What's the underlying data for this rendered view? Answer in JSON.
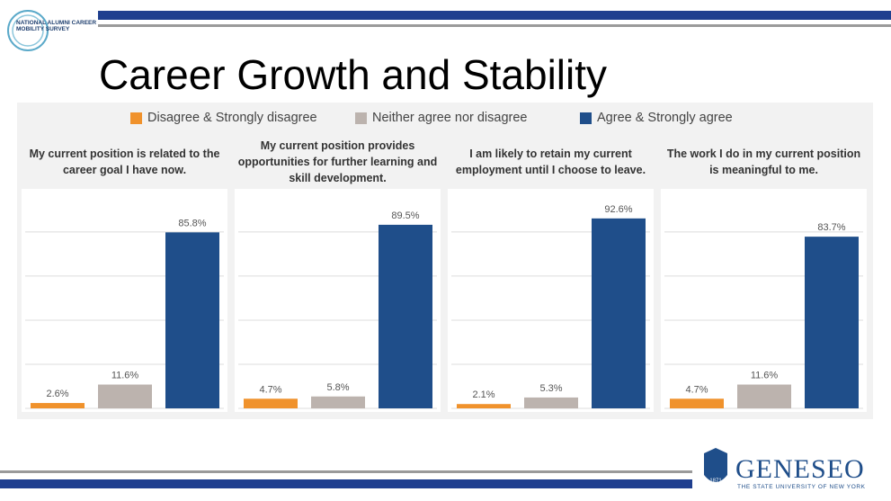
{
  "header": {
    "title": "Career Growth and Stability",
    "logo_text": "NATIONAL ALUMNI CAREER MOBILITY SURVEY"
  },
  "footer": {
    "logo_name": "GENESEO",
    "logo_subtitle": "THE STATE UNIVERSITY OF NEW YORK",
    "logo_year": "1871"
  },
  "legend": [
    {
      "name": "Disagree & Strongly disagree",
      "color": "#f0922c"
    },
    {
      "name": "Neither agree nor disagree",
      "color": "#bcb3ae"
    },
    {
      "name": "Agree & Strongly agree",
      "color": "#1f4e8a"
    }
  ],
  "chart_data": [
    {
      "type": "bar",
      "title": "My current position is related to the career goal I have now.",
      "values": [
        2.6,
        11.6,
        85.8
      ],
      "value_labels": [
        "2.6%",
        "11.6%",
        "85.8%"
      ],
      "ylim": [
        0,
        107
      ],
      "yticks": [
        0,
        21.5,
        43,
        64.5,
        86
      ],
      "grid": true
    },
    {
      "type": "bar",
      "title": "My current position provides opportunities for further learning and skill development.",
      "values": [
        4.7,
        5.8,
        89.5
      ],
      "value_labels": [
        "4.7%",
        "5.8%",
        "89.5%"
      ],
      "ylim": [
        0,
        107
      ],
      "yticks": [
        0,
        21.5,
        43,
        64.5,
        86
      ],
      "grid": true
    },
    {
      "type": "bar",
      "title": "I am likely to retain my current employment until I choose to leave.",
      "values": [
        2.1,
        5.3,
        92.6
      ],
      "value_labels": [
        "2.1%",
        "5.3%",
        "92.6%"
      ],
      "ylim": [
        0,
        107
      ],
      "yticks": [
        0,
        21.5,
        43,
        64.5,
        86
      ],
      "grid": true
    },
    {
      "type": "bar",
      "title": "The work I do in my current position is meaningful to me.",
      "values": [
        4.7,
        11.6,
        83.7
      ],
      "value_labels": [
        "4.7%",
        "11.6%",
        "83.7%"
      ],
      "ylim": [
        0,
        107
      ],
      "yticks": [
        0,
        21.5,
        43,
        64.5,
        86
      ],
      "grid": true
    }
  ]
}
